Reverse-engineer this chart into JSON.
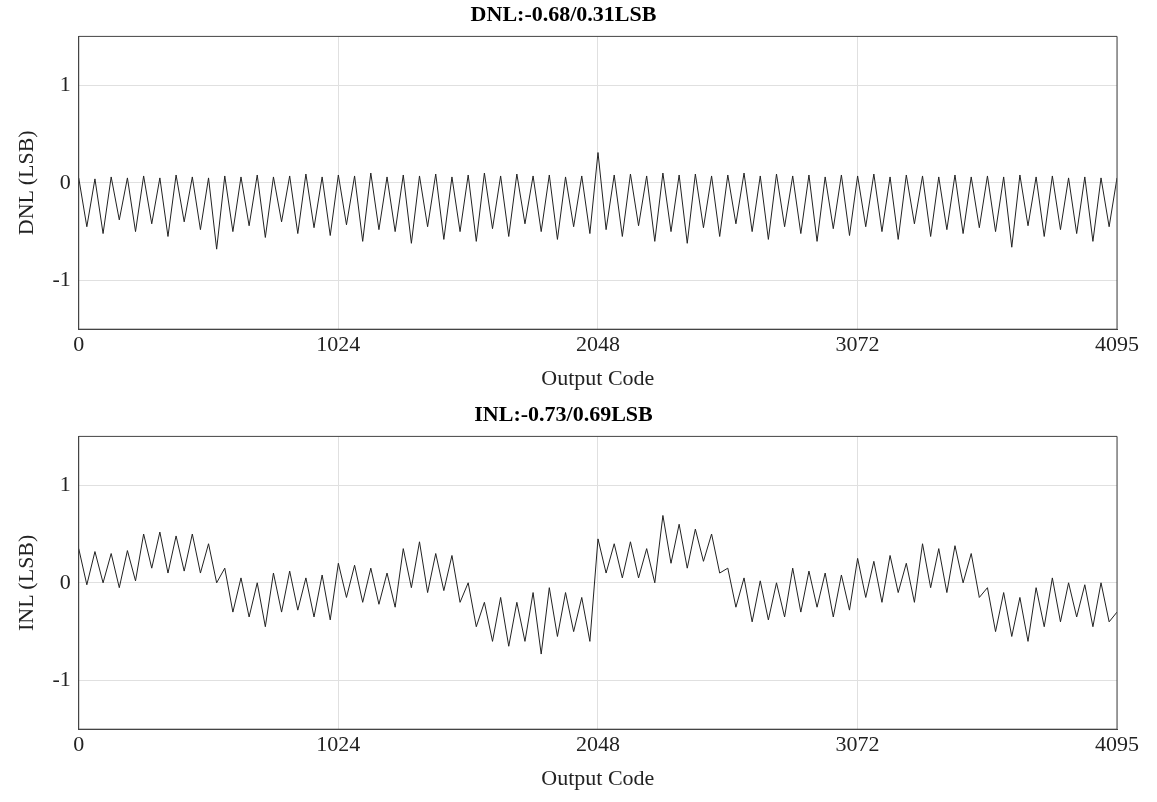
{
  "chart_data": [
    {
      "type": "line",
      "title": "DNL:-0.68/0.31LSB",
      "xlabel": "Output Code",
      "ylabel": "DNL (LSB)",
      "xlim": [
        0,
        4095
      ],
      "xticks": [
        0,
        1024,
        2048,
        3072,
        4095
      ],
      "ylim": [
        -1.5,
        1.5
      ],
      "yticks": [
        -1,
        0,
        1
      ],
      "grid": true,
      "legend": false,
      "marker": "none",
      "x": [
        0,
        32,
        64,
        96,
        128,
        160,
        192,
        224,
        256,
        288,
        320,
        352,
        384,
        416,
        448,
        480,
        512,
        544,
        576,
        608,
        640,
        672,
        704,
        736,
        768,
        800,
        832,
        864,
        896,
        928,
        960,
        992,
        1024,
        1056,
        1088,
        1120,
        1152,
        1184,
        1216,
        1248,
        1280,
        1312,
        1344,
        1376,
        1408,
        1440,
        1472,
        1504,
        1536,
        1568,
        1600,
        1632,
        1664,
        1696,
        1728,
        1760,
        1792,
        1824,
        1856,
        1888,
        1920,
        1952,
        1984,
        2016,
        2048,
        2080,
        2112,
        2144,
        2176,
        2208,
        2240,
        2272,
        2304,
        2336,
        2368,
        2400,
        2432,
        2464,
        2496,
        2528,
        2560,
        2592,
        2624,
        2656,
        2688,
        2720,
        2752,
        2784,
        2816,
        2848,
        2880,
        2912,
        2944,
        2976,
        3008,
        3040,
        3072,
        3104,
        3136,
        3168,
        3200,
        3232,
        3264,
        3296,
        3328,
        3360,
        3392,
        3424,
        3456,
        3488,
        3520,
        3552,
        3584,
        3616,
        3648,
        3680,
        3712,
        3744,
        3776,
        3808,
        3840,
        3872,
        3904,
        3936,
        3968,
        4000,
        4032,
        4064,
        4095
      ],
      "series": [
        {
          "color": "#222222",
          "values": [
            0.05,
            -0.45,
            0.04,
            -0.52,
            0.06,
            -0.38,
            0.05,
            -0.5,
            0.07,
            -0.42,
            0.05,
            -0.55,
            0.08,
            -0.4,
            0.06,
            -0.48,
            0.05,
            -0.68,
            0.07,
            -0.5,
            0.06,
            -0.44,
            0.08,
            -0.56,
            0.06,
            -0.4,
            0.07,
            -0.52,
            0.09,
            -0.46,
            0.06,
            -0.54,
            0.08,
            -0.43,
            0.07,
            -0.6,
            0.1,
            -0.48,
            0.06,
            -0.5,
            0.08,
            -0.62,
            0.07,
            -0.45,
            0.09,
            -0.58,
            0.06,
            -0.5,
            0.08,
            -0.6,
            0.1,
            -0.47,
            0.07,
            -0.55,
            0.09,
            -0.42,
            0.07,
            -0.5,
            0.08,
            -0.58,
            0.06,
            -0.45,
            0.07,
            -0.52,
            0.31,
            -0.48,
            0.08,
            -0.55,
            0.09,
            -0.44,
            0.07,
            -0.6,
            0.1,
            -0.5,
            0.08,
            -0.62,
            0.09,
            -0.46,
            0.07,
            -0.55,
            0.08,
            -0.42,
            0.1,
            -0.5,
            0.07,
            -0.58,
            0.09,
            -0.45,
            0.07,
            -0.52,
            0.08,
            -0.6,
            0.06,
            -0.47,
            0.08,
            -0.54,
            0.07,
            -0.45,
            0.09,
            -0.5,
            0.06,
            -0.58,
            0.08,
            -0.42,
            0.07,
            -0.55,
            0.06,
            -0.48,
            0.08,
            -0.52,
            0.06,
            -0.46,
            0.07,
            -0.5,
            0.06,
            -0.66,
            0.08,
            -0.44,
            0.06,
            -0.55,
            0.07,
            -0.48,
            0.05,
            -0.52,
            0.06,
            -0.6,
            0.05,
            -0.45,
            0.05
          ]
        }
      ]
    },
    {
      "type": "line",
      "title": "INL:-0.73/0.69LSB",
      "xlabel": "Output Code",
      "ylabel": "INL (LSB)",
      "xlim": [
        0,
        4095
      ],
      "xticks": [
        0,
        1024,
        2048,
        3072,
        4095
      ],
      "ylim": [
        -1.5,
        1.5
      ],
      "yticks": [
        -1,
        0,
        1
      ],
      "grid": true,
      "legend": false,
      "marker": "none",
      "x": [
        0,
        32,
        64,
        96,
        128,
        160,
        192,
        224,
        256,
        288,
        320,
        352,
        384,
        416,
        448,
        480,
        512,
        544,
        576,
        608,
        640,
        672,
        704,
        736,
        768,
        800,
        832,
        864,
        896,
        928,
        960,
        992,
        1024,
        1056,
        1088,
        1120,
        1152,
        1184,
        1216,
        1248,
        1280,
        1312,
        1344,
        1376,
        1408,
        1440,
        1472,
        1504,
        1536,
        1568,
        1600,
        1632,
        1664,
        1696,
        1728,
        1760,
        1792,
        1824,
        1856,
        1888,
        1920,
        1952,
        1984,
        2016,
        2048,
        2080,
        2112,
        2144,
        2176,
        2208,
        2240,
        2272,
        2304,
        2336,
        2368,
        2400,
        2432,
        2464,
        2496,
        2528,
        2560,
        2592,
        2624,
        2656,
        2688,
        2720,
        2752,
        2784,
        2816,
        2848,
        2880,
        2912,
        2944,
        2976,
        3008,
        3040,
        3072,
        3104,
        3136,
        3168,
        3200,
        3232,
        3264,
        3296,
        3328,
        3360,
        3392,
        3424,
        3456,
        3488,
        3520,
        3552,
        3584,
        3616,
        3648,
        3680,
        3712,
        3744,
        3776,
        3808,
        3840,
        3872,
        3904,
        3936,
        3968,
        4000,
        4032,
        4064,
        4095
      ],
      "series": [
        {
          "color": "#222222",
          "values": [
            0.35,
            -0.02,
            0.32,
            0.0,
            0.3,
            -0.05,
            0.33,
            0.02,
            0.5,
            0.15,
            0.52,
            0.1,
            0.48,
            0.12,
            0.5,
            0.1,
            0.4,
            0.0,
            0.15,
            -0.3,
            0.05,
            -0.35,
            0.0,
            -0.45,
            0.1,
            -0.3,
            0.12,
            -0.28,
            0.05,
            -0.35,
            0.08,
            -0.38,
            0.2,
            -0.15,
            0.18,
            -0.2,
            0.15,
            -0.22,
            0.1,
            -0.25,
            0.35,
            -0.05,
            0.42,
            -0.1,
            0.3,
            -0.08,
            0.28,
            -0.2,
            0.0,
            -0.45,
            -0.2,
            -0.6,
            -0.15,
            -0.65,
            -0.2,
            -0.6,
            -0.1,
            -0.73,
            -0.05,
            -0.55,
            -0.1,
            -0.5,
            -0.15,
            -0.6,
            0.45,
            0.1,
            0.4,
            0.05,
            0.42,
            0.05,
            0.35,
            0.0,
            0.69,
            0.2,
            0.6,
            0.15,
            0.55,
            0.22,
            0.5,
            0.1,
            0.15,
            -0.25,
            0.05,
            -0.4,
            0.02,
            -0.38,
            0.0,
            -0.35,
            0.15,
            -0.3,
            0.12,
            -0.25,
            0.1,
            -0.35,
            0.08,
            -0.28,
            0.25,
            -0.15,
            0.22,
            -0.2,
            0.28,
            -0.1,
            0.2,
            -0.2,
            0.4,
            -0.05,
            0.35,
            -0.1,
            0.38,
            0.0,
            0.3,
            -0.15,
            -0.05,
            -0.5,
            -0.1,
            -0.55,
            -0.15,
            -0.6,
            -0.05,
            -0.45,
            0.05,
            -0.4,
            0.0,
            -0.35,
            -0.02,
            -0.45,
            0.0,
            -0.4,
            -0.3
          ]
        }
      ]
    }
  ]
}
